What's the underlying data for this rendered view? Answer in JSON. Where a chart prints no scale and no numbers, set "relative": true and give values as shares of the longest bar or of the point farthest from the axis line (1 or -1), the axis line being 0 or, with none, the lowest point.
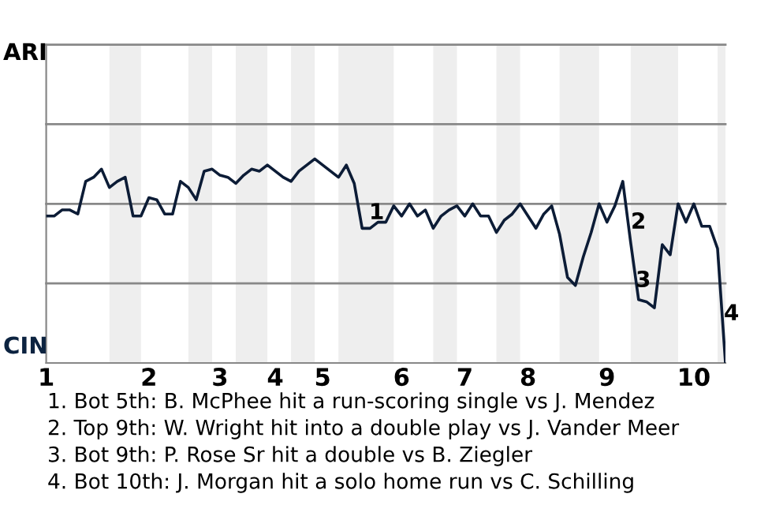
{
  "chart_data": {
    "type": "line",
    "relative": true,
    "categories": [
      "1",
      null,
      null,
      null,
      null,
      null,
      null,
      null,
      null,
      null,
      null,
      null,
      null,
      "2",
      null,
      null,
      null,
      null,
      null,
      null,
      null,
      null,
      "3",
      null,
      null,
      null,
      null,
      null,
      null,
      "4",
      null,
      null,
      null,
      null,
      null,
      "5",
      null,
      null,
      null,
      null,
      null,
      null,
      null,
      null,
      null,
      "6",
      null,
      null,
      null,
      null,
      null,
      null,
      null,
      "7",
      null,
      null,
      null,
      null,
      null,
      null,
      null,
      "8",
      null,
      null,
      null,
      null,
      null,
      null,
      null,
      null,
      null,
      "9",
      null,
      null,
      null,
      null,
      null,
      null,
      null,
      null,
      null,
      null,
      "10",
      null,
      null,
      null,
      null
    ],
    "series": [
      {
        "color": "#0c1c36",
        "values": [
          0.72,
          0.72,
          0.75,
          0.75,
          0.73,
          0.89,
          0.91,
          0.95,
          0.86,
          0.89,
          0.91,
          0.72,
          0.72,
          0.81,
          0.8,
          0.73,
          0.73,
          0.89,
          0.86,
          0.8,
          0.94,
          0.95,
          0.92,
          0.91,
          0.88,
          0.92,
          0.95,
          0.94,
          0.97,
          0.94,
          0.91,
          0.89,
          0.94,
          0.97,
          1,
          0.97,
          0.94,
          0.91,
          0.97,
          0.88,
          0.66,
          0.66,
          0.69,
          0.69,
          0.77,
          0.72,
          0.78,
          0.72,
          0.75,
          0.66,
          0.72,
          0.75,
          0.77,
          0.72,
          0.78,
          0.72,
          0.72,
          0.64,
          0.7,
          0.73,
          0.78,
          0.72,
          0.66,
          0.73,
          0.77,
          0.63,
          0.42,
          0.38,
          0.52,
          0.64,
          0.78,
          0.69,
          0.77,
          0.89,
          0.59,
          0.31,
          0.3,
          0.27,
          0.58,
          0.53,
          0.78,
          0.69,
          0.78,
          0.67,
          0.67,
          0.56,
          0
        ]
      }
    ],
    "ref_lines": [
      {
        "axis": "y",
        "value": 0.39,
        "color": "#888888"
      },
      {
        "axis": "y",
        "value": 0.78,
        "color": "#888888"
      },
      {
        "axis": "y",
        "value": 1.17,
        "color": "#888888"
      },
      {
        "axis": "y",
        "value": 1.56,
        "color": "#888888"
      }
    ],
    "annotations": [
      "ARI",
      "CIN",
      "1",
      "2",
      "3",
      "4",
      "1. Bot 5th: B. McPhee hit a run-scoring single vs J. Mendez",
      "2. Top 9th: W. Wright hit into a double play vs J. Vander Meer",
      "3. Bot 9th: P. Rose Sr hit a double vs B. Ziegler",
      "4. Bot 10th: J. Morgan hit a solo home run vs C. Schilling"
    ]
  }
}
